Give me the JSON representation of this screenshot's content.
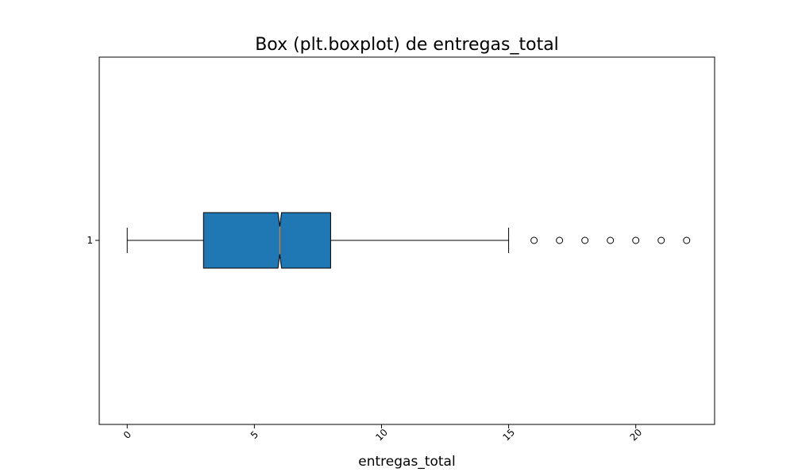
{
  "chart_data": {
    "type": "boxplot",
    "orientation": "horizontal",
    "notched": true,
    "title": "Box (plt.boxplot) de entregas_total",
    "xlabel": "entregas_total",
    "ylabel": "",
    "xlim": [
      -1.1,
      23.1
    ],
    "xticks": [
      0,
      5,
      10,
      15,
      20
    ],
    "xtick_labels": [
      "0",
      "5",
      "10",
      "15",
      "20"
    ],
    "xtick_rotation": -45,
    "yticks": [
      "1"
    ],
    "grid": false,
    "box": {
      "category": "1",
      "whisker_low": 0,
      "q1": 3,
      "median": 6,
      "q3": 8,
      "whisker_high": 15,
      "notch_low": 5.93,
      "notch_high": 6.07,
      "outliers": [
        16,
        17,
        18,
        19,
        20,
        21,
        22
      ]
    },
    "colors": {
      "box_fill": "#1f77b4",
      "box_edge": "#000000",
      "median": "#ff7f0e",
      "whisker": "#000000",
      "outlier_edge": "#000000"
    }
  }
}
